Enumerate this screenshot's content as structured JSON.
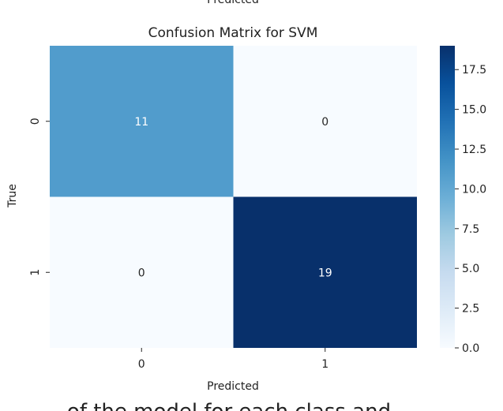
{
  "top_cropped_text": "Predicted",
  "bottom_cropped_text": "of the model for each class and",
  "chart_data": {
    "type": "heatmap",
    "title": "Confusion Matrix for SVM",
    "xlabel": "Predicted",
    "ylabel": "True",
    "x_categories": [
      "0",
      "1"
    ],
    "y_categories": [
      "0",
      "1"
    ],
    "matrix": [
      [
        11,
        0
      ],
      [
        0,
        19
      ]
    ],
    "colormap": "Blues",
    "colorbar": {
      "min": 0.0,
      "max": 19,
      "ticks": [
        "0.0",
        "2.5",
        "5.0",
        "7.5",
        "10.0",
        "12.5",
        "15.0",
        "17.5"
      ]
    },
    "colors": {
      "low": "#f7fbff",
      "high": "#08306b",
      "text_on_dark": "#ffffff",
      "text_on_light": "#262626"
    }
  }
}
